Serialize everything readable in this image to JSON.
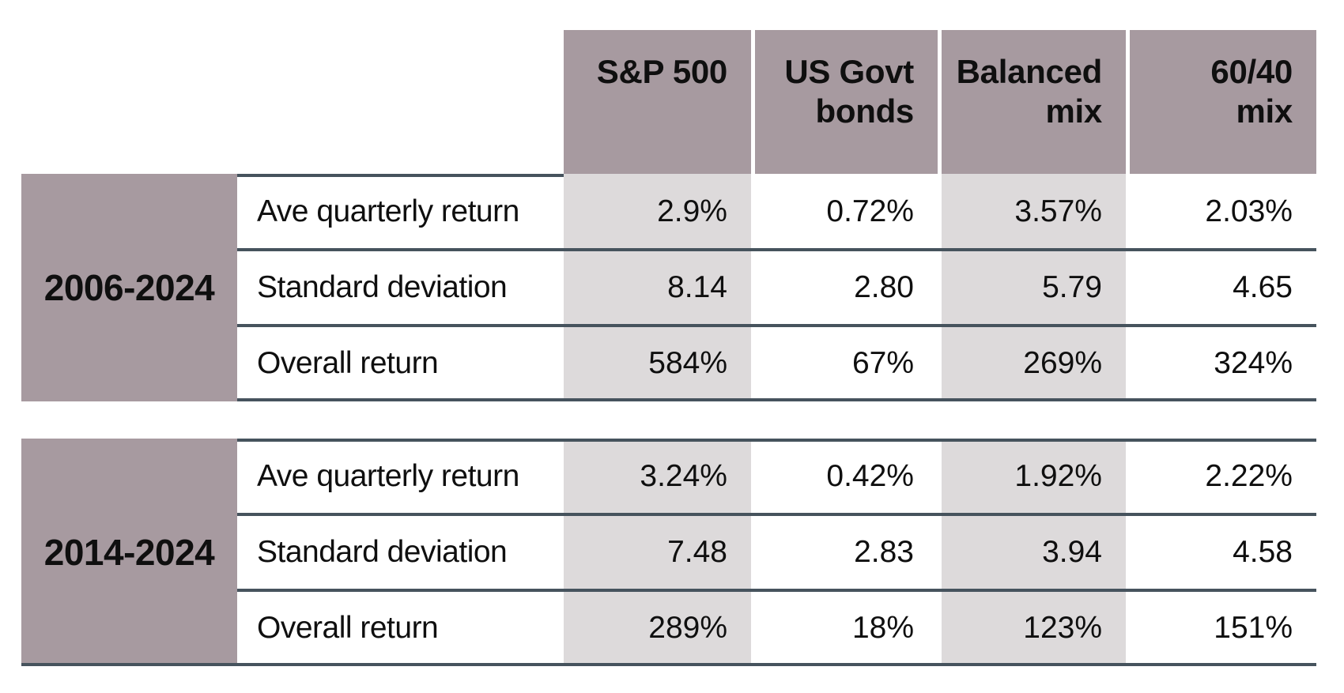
{
  "chart_data": {
    "type": "table",
    "columns": [
      "S&P 500",
      "US Govt bonds",
      "Balanced mix",
      "60/40 mix"
    ],
    "row_labels": [
      "Ave quarterly return",
      "Standard deviation",
      "Overall return"
    ],
    "sections": [
      {
        "period": "2006-2024",
        "rows": [
          {
            "label": "Ave quarterly return",
            "values": [
              "2.9%",
              "0.72%",
              "3.57%",
              "2.03%"
            ]
          },
          {
            "label": "Standard deviation",
            "values": [
              "8.14",
              "2.80",
              "5.79",
              "4.65"
            ]
          },
          {
            "label": "Overall return",
            "values": [
              "584%",
              "67%",
              "269%",
              "324%"
            ]
          }
        ]
      },
      {
        "period": "2014-2024",
        "rows": [
          {
            "label": "Ave quarterly return",
            "values": [
              "3.24%",
              "0.42%",
              "1.92%",
              "2.22%"
            ]
          },
          {
            "label": "Standard deviation",
            "values": [
              "7.48",
              "2.83",
              "3.94",
              "4.58"
            ]
          },
          {
            "label": "Overall return",
            "values": [
              "289%",
              "18%",
              "123%",
              "151%"
            ]
          }
        ]
      }
    ],
    "layout_hints": {
      "shaded_columns": [
        "S&P 500",
        "Balanced mix"
      ],
      "header_position": "top",
      "value_alignment": "right"
    }
  },
  "header": {
    "cells": [
      "S&P 500",
      "US Govt\nbonds",
      "Balanced\nmix",
      "60/40\nmix"
    ]
  },
  "colors": {
    "header_bg": "#a79aa0",
    "period_bg": "#a79aa0",
    "column_shade": "#dddadb",
    "rule": "#46535d",
    "text": "#0f0f0f",
    "background": "#ffffff"
  }
}
